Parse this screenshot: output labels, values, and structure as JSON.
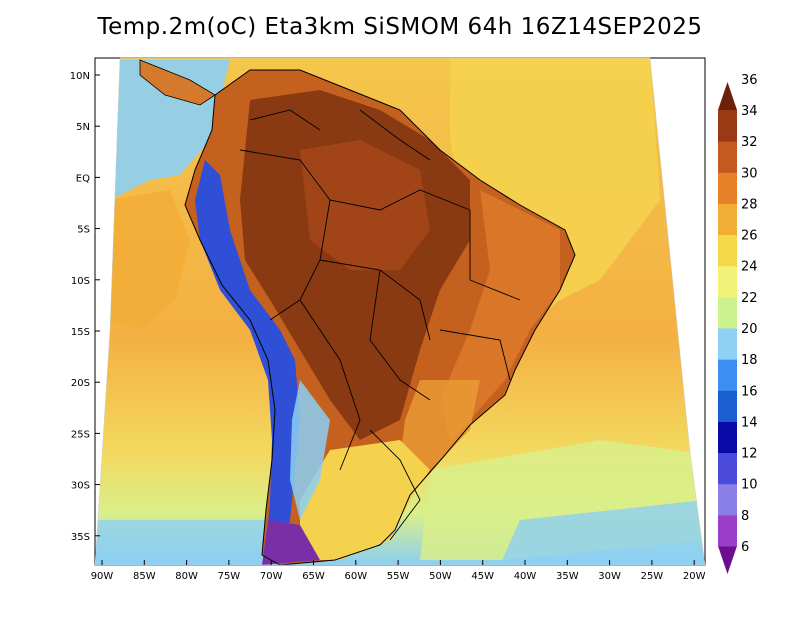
{
  "title": "Temp.2m(oC) Eta3km SiSMOM 64h 16Z14SEP2025",
  "lat_labels": [
    "10N",
    "5N",
    "EQ",
    "5S",
    "10S",
    "15S",
    "20S",
    "25S",
    "30S",
    "35S"
  ],
  "lon_labels": [
    "90W",
    "85W",
    "80W",
    "75W",
    "70W",
    "65W",
    "60W",
    "55W",
    "50W",
    "45W",
    "40W",
    "35W",
    "30W",
    "25W",
    "20W"
  ],
  "colorbar": {
    "labels": [
      "6",
      "8",
      "10",
      "12",
      "14",
      "16",
      "18",
      "20",
      "22",
      "24",
      "26",
      "28",
      "30",
      "32",
      "34",
      "36"
    ],
    "colors": [
      "#6a0f8e",
      "#9b3ec9",
      "#8a7fe6",
      "#4a4adb",
      "#0a0aa6",
      "#1a5fd1",
      "#3c8ff0",
      "#8fd0f5",
      "#ccf28f",
      "#f2f27a",
      "#f5d84a",
      "#f2ad37",
      "#e8802a",
      "#c45a1f",
      "#9a3a15",
      "#6b2208"
    ]
  },
  "color_key": {
    "sea_warm": "#f4b042",
    "sea_mid": "#f5d560",
    "sea_cool": "#d9ef8a",
    "sea_cold": "#8ccff4",
    "land_hot": "#b9531c",
    "land_very_hot": "#7a300d",
    "andes": "#2f4fd6"
  }
}
